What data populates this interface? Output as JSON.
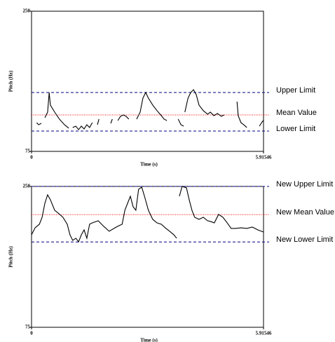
{
  "chart_data": [
    {
      "type": "line",
      "xlabel": "Time (s)",
      "ylabel": "Pitch (Hz)",
      "xlim": [
        0,
        5.91546
      ],
      "xticks": [
        0,
        5.91546
      ],
      "ylim": [
        75,
        250
      ],
      "yticks": [
        75,
        250
      ],
      "color": "#000000",
      "x": [
        0.13,
        0.18,
        0.25,
        null,
        0.34,
        0.41,
        0.45,
        0.48,
        0.59,
        0.71,
        0.84,
        0.95,
        null,
        1.05,
        1.13,
        1.2,
        1.27,
        1.34,
        1.41,
        1.48,
        1.55,
        null,
        1.68,
        1.72,
        null,
        2.02,
        2.06,
        null,
        2.2,
        2.27,
        2.34,
        2.41,
        2.48,
        null,
        2.68,
        2.77,
        2.84,
        2.91,
        2.98,
        3.09,
        3.2,
        3.31,
        3.38,
        3.45,
        null,
        3.74,
        3.81,
        3.88,
        null,
        3.91,
        3.99,
        4.06,
        4.13,
        4.2,
        4.27,
        4.38,
        4.49,
        4.56,
        4.65,
        4.74,
        4.84,
        4.91,
        null,
        5.24,
        5.27,
        5.34,
        5.41,
        5.49,
        null,
        5.81,
        5.88,
        5.91
      ],
      "values": [
        110.9,
        108.3,
        110,
        null,
        117,
        124,
        148.5,
        132.8,
        124,
        115.3,
        108.3,
        103.9,
        null,
        104.8,
        106.5,
        102.1,
        106.5,
        103,
        108.3,
        104.8,
        110.9,
        null,
        108.3,
        115.3,
        null,
        110,
        115.3,
        null,
        113.5,
        118.8,
        120.5,
        118.8,
        115.3,
        null,
        115.3,
        124,
        141.5,
        148.5,
        141.5,
        132.8,
        125.8,
        119.6,
        115.3,
        113.5,
        null,
        115.3,
        108.3,
        106.5,
        null,
        124,
        141.5,
        148.5,
        152,
        145.9,
        132.8,
        125.8,
        121.4,
        124,
        119.6,
        122.3,
        118.8,
        120.5,
        null,
        137.1,
        119.6,
        110.9,
        108.3,
        104.8,
        null,
        106.5,
        111.8,
        113.5
      ],
      "reference_lines": [
        {
          "label": "Upper Limit",
          "value": 148.5,
          "color": "#000080",
          "style": "dashed"
        },
        {
          "label": "Mean Value",
          "value": 120.5,
          "color": "#ff0000",
          "style": "dotted"
        },
        {
          "label": "Lower Limit",
          "value": 100.4,
          "color": "#000080",
          "style": "dashed"
        }
      ]
    },
    {
      "type": "line",
      "xlabel": "Time (s)",
      "ylabel": "Pitch (Hz)",
      "xlim": [
        0,
        5.91546
      ],
      "xticks": [
        0,
        5.91546
      ],
      "ylim": [
        75,
        250
      ],
      "yticks": [
        75,
        250
      ],
      "color": "#000000",
      "x": [
        0,
        0.09,
        0.2,
        0.27,
        0.34,
        0.41,
        0.48,
        0.59,
        0.7,
        0.8,
        0.91,
        0.98,
        1.05,
        1.13,
        1.2,
        1.27,
        1.34,
        1.41,
        1.48,
        1.55,
        1.7,
        1.84,
        1.98,
        2.13,
        2.23,
        2.31,
        2.38,
        2.45,
        2.52,
        2.59,
        2.66,
        2.73,
        2.81,
        2.88,
        2.98,
        3.09,
        3.2,
        3.31,
        3.41,
        3.52,
        3.63,
        3.7,
        null,
        3.77,
        3.84,
        3.95,
        4.02,
        4.09,
        4.16,
        4.27,
        4.38,
        4.49,
        4.56,
        4.66,
        4.77,
        4.88,
        4.99,
        5.09,
        5.2,
        5.34,
        5.49,
        5.63,
        5.77,
        5.91
      ],
      "values": [
        189.9,
        198.6,
        203,
        211.7,
        229.1,
        239.6,
        233.5,
        220.4,
        216,
        211.7,
        203,
        189.9,
        183,
        185.6,
        181.2,
        189.9,
        196,
        185.6,
        203,
        204.7,
        207.3,
        200.4,
        194.3,
        198.6,
        201.2,
        203,
        220.4,
        229.1,
        237.8,
        224.8,
        220.4,
        246.5,
        249.1,
        237.8,
        220.4,
        209.1,
        204.7,
        203,
        198.6,
        194.3,
        189.9,
        185.6,
        null,
        237.8,
        250,
        248.3,
        233.5,
        220.4,
        211.7,
        209.1,
        211.7,
        207.3,
        206.5,
        204.7,
        215.2,
        211.7,
        204.7,
        197.8,
        197.8,
        198.6,
        197.8,
        199.5,
        196,
        193.4
      ],
      "reference_lines": [
        {
          "label": "New Upper Limit",
          "value": 250,
          "color": "#000080",
          "style": "dashed"
        },
        {
          "label": "New Mean Value",
          "value": 215,
          "color": "#ff0000",
          "style": "dotted"
        },
        {
          "label": "New Lower Limit",
          "value": 181,
          "color": "#000080",
          "style": "dashed"
        }
      ]
    }
  ]
}
